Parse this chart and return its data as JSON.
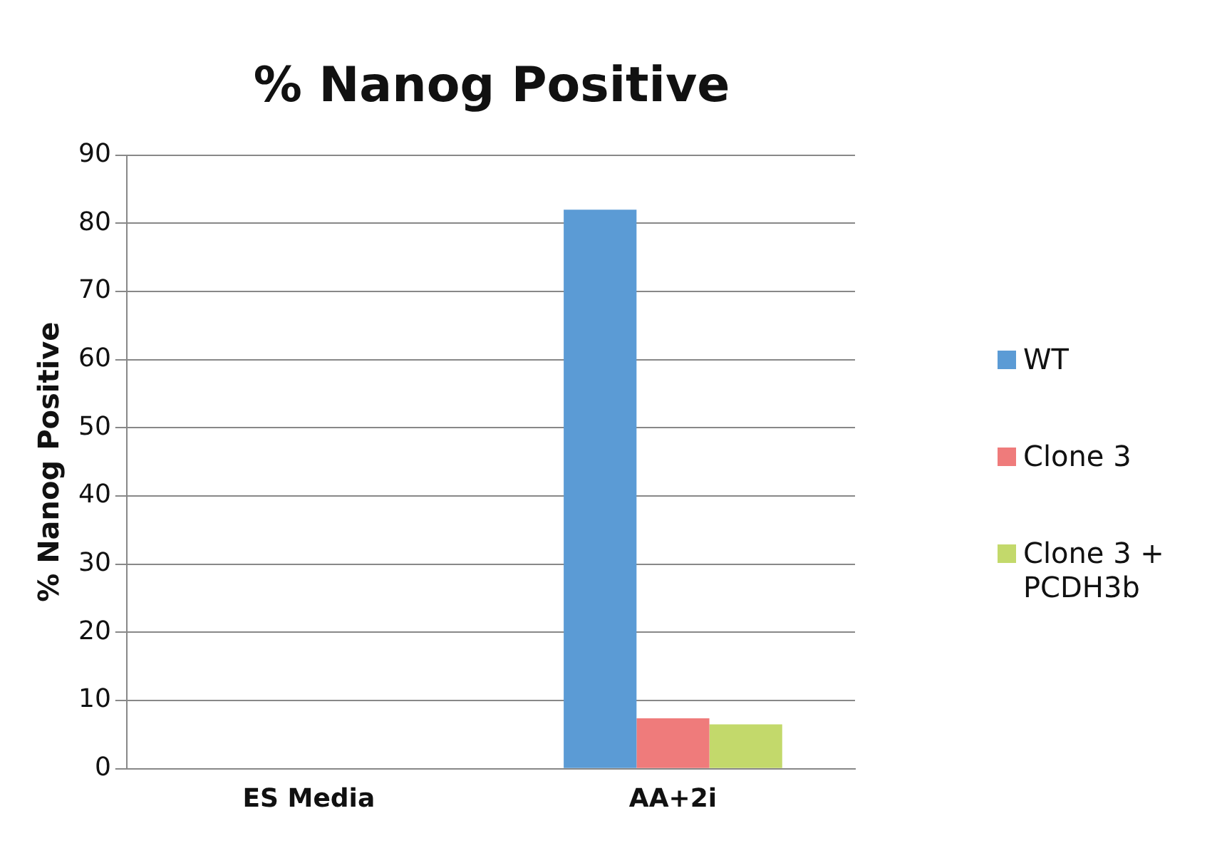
{
  "chart_data": {
    "type": "bar",
    "title": "% Nanog Positive",
    "ylabel": "% Nanog Positive",
    "categories": [
      "ES Media",
      "AA+2i"
    ],
    "series": [
      {
        "name": "WT",
        "color": "#5b9bd5",
        "values": [
          0,
          82
        ]
      },
      {
        "name": "Clone 3",
        "color": "#ef7b7b",
        "values": [
          0,
          7.4
        ]
      },
      {
        "name": "Clone 3 + PCDH3b",
        "color": "#c3d96b",
        "values": [
          0,
          6.5
        ]
      }
    ],
    "ylim": [
      0,
      90
    ],
    "yticks": [
      0,
      10,
      20,
      30,
      40,
      50,
      60,
      70,
      80,
      90
    ],
    "grid": "y",
    "legend": "right"
  }
}
